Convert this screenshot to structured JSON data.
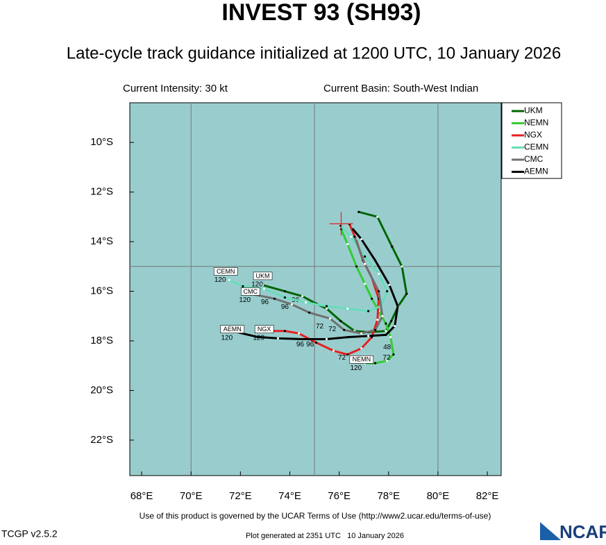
{
  "map": {
    "title": "INVEST 93 (SH93)",
    "subtitle": "Late-cycle track guidance initialized at 1200 UTC, 10 January 2026",
    "intensity": "Current Intensity: 30 kt",
    "basin": "Current Basin: South-West Indian",
    "terms": "Use of this product is governed by the UCAR Terms of Use (http://www2.ucar.edu/terms-of-use)",
    "version": "TCGP v2.5.2",
    "generated": "Plot generated at 2351 UTC   10 January 2026",
    "logo": "NCAR",
    "xlim": [
      67.52,
      82.56
    ],
    "ylim": [
      -23.43,
      -8.4
    ],
    "xticks": [
      {
        "value": 68,
        "label": "68°E"
      },
      {
        "value": 70,
        "label": "70°E"
      },
      {
        "value": 72,
        "label": "72°E"
      },
      {
        "value": 74,
        "label": "74°E"
      },
      {
        "value": 76,
        "label": "76°E"
      },
      {
        "value": 78,
        "label": "78°E"
      },
      {
        "value": 80,
        "label": "80°E"
      },
      {
        "value": 82,
        "label": "82°E"
      }
    ],
    "yticks": [
      {
        "value": -10,
        "label": "10°S"
      },
      {
        "value": -12,
        "label": "12°S"
      },
      {
        "value": -14,
        "label": "14°S"
      },
      {
        "value": -16,
        "label": "16°S"
      },
      {
        "value": -18,
        "label": "18°S"
      },
      {
        "value": -20,
        "label": "20°S"
      },
      {
        "value": -22,
        "label": "22°S"
      }
    ],
    "grid_lon": [
      70,
      75,
      80
    ],
    "grid_lat": [
      -15
    ],
    "initial": {
      "lon": 76.08,
      "lat": -13.28
    },
    "tracks": [
      {
        "name": "UKM",
        "color": "#006400",
        "lon": [
          76.79,
          77.55,
          78.14,
          78.54,
          78.73,
          78.39,
          78.11,
          77.89,
          77.18,
          76.62,
          76.06,
          75.49,
          75.07,
          74.51,
          73.8,
          72.9
        ],
        "lat": [
          -12.8,
          -13.0,
          -14.2,
          -15.0,
          -16.1,
          -16.6,
          -17.2,
          -17.6,
          -17.65,
          -17.6,
          -17.2,
          -16.7,
          -16.5,
          -16.2,
          -16.0,
          -15.75
        ],
        "hour_labels": [
          {
            "text": 120,
            "lon": 72.68,
            "lat": -15.73
          },
          {
            "text": 96,
            "lon": 74.23,
            "lat": -16.36
          }
        ]
      },
      {
        "name": "NEMN",
        "color": "#33cc33",
        "lon": [
          76.08,
          76.34,
          76.7,
          77.04,
          77.32,
          77.6,
          77.89,
          78.08,
          78.2,
          77.94,
          77.46,
          77.04
        ],
        "lat": [
          -13.5,
          -14.1,
          -15.0,
          -15.7,
          -16.3,
          -16.8,
          -17.3,
          -17.85,
          -18.55,
          -18.8,
          -18.9,
          -18.9
        ],
        "hour_labels": [
          {
            "text": 120,
            "lon": 76.68,
            "lat": -19.1
          },
          {
            "text": 72,
            "lon": 77.92,
            "lat": -18.68
          },
          {
            "text": 48,
            "lon": 77.94,
            "lat": -18.26
          }
        ]
      },
      {
        "name": "NGX",
        "color": "#e62020",
        "lon": [
          76.42,
          76.68,
          76.96,
          77.32,
          77.6,
          77.55,
          77.32,
          76.9,
          76.34,
          75.77,
          75.07,
          74.37,
          73.8,
          72.96
        ],
        "lat": [
          -13.3,
          -13.9,
          -14.75,
          -15.45,
          -16.3,
          -17.15,
          -17.85,
          -18.3,
          -18.55,
          -18.4,
          -18.07,
          -17.7,
          -17.6,
          -17.6
        ],
        "hour_labels": [
          {
            "text": 120,
            "lon": 72.74,
            "lat": -17.88
          },
          {
            "text": 96,
            "lon": 74.82,
            "lat": -18.15
          },
          {
            "text": 72,
            "lon": 76.11,
            "lat": -18.68
          }
        ]
      },
      {
        "name": "CEMN",
        "color": "#66ddbb",
        "lon": [
          76.06,
          76.48,
          77.04,
          77.6,
          77.94,
          77.69,
          77.18,
          76.34,
          75.49,
          74.65,
          73.8,
          72.96,
          72.1,
          71.55
        ],
        "lat": [
          -13.36,
          -13.8,
          -14.6,
          -15.3,
          -16.0,
          -16.6,
          -16.8,
          -16.7,
          -16.6,
          -16.45,
          -16.25,
          -15.9,
          -15.8,
          -15.55
        ],
        "hour_labels": [
          {
            "text": 120,
            "lon": 71.18,
            "lat": -15.55
          },
          {
            "text": 96,
            "lon": 73.8,
            "lat": -16.64
          },
          {
            "text": 72,
            "lon": 75.72,
            "lat": -17.54
          }
        ]
      },
      {
        "name": "CMC",
        "color": "#707070",
        "lon": [
          76.62,
          77.04,
          77.6,
          77.75,
          77.46,
          76.9,
          76.2,
          75.63,
          74.79,
          74.08,
          73.38,
          72.39
        ],
        "lat": [
          -13.8,
          -14.9,
          -16.0,
          -17.0,
          -17.56,
          -17.7,
          -17.56,
          -17.1,
          -16.86,
          -16.53,
          -16.3,
          -16.1
        ],
        "hour_labels": [
          {
            "text": 120,
            "lon": 72.18,
            "lat": -16.36
          },
          {
            "text": 96,
            "lon": 72.99,
            "lat": -16.44
          },
          {
            "text": 72,
            "lon": 75.21,
            "lat": -17.42
          }
        ]
      },
      {
        "name": "AEMN",
        "color": "#000000",
        "lon": [
          76.56,
          76.9,
          77.46,
          78.03,
          78.37,
          78.25,
          77.89,
          77.18,
          76.34,
          75.49,
          74.51,
          73.52,
          72.68,
          71.75
        ],
        "lat": [
          -13.5,
          -13.9,
          -14.76,
          -15.74,
          -16.6,
          -17.4,
          -17.76,
          -17.8,
          -17.85,
          -17.93,
          -17.93,
          -17.9,
          -17.84,
          -17.62
        ],
        "hour_labels": [
          {
            "text": 120,
            "lon": 71.45,
            "lat": -17.88
          },
          {
            "text": 96,
            "lon": 74.42,
            "lat": -18.15
          }
        ]
      }
    ]
  }
}
